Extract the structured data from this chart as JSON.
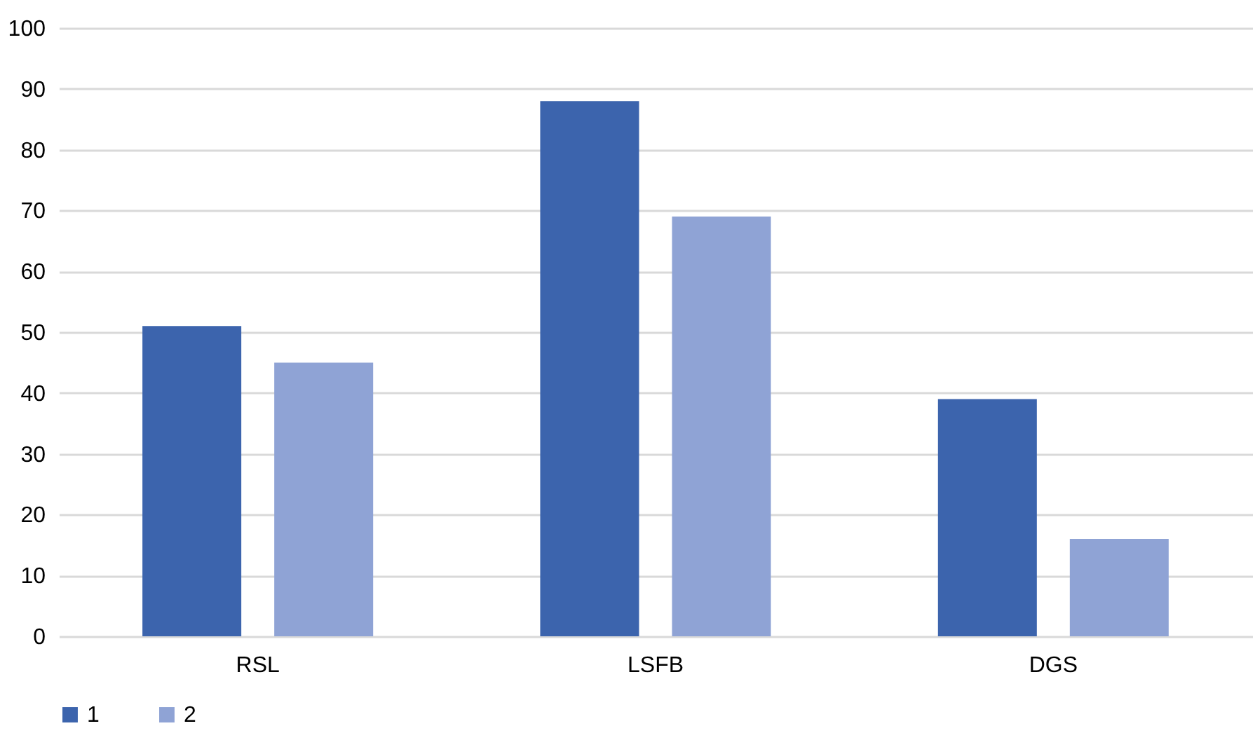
{
  "chart_data": {
    "type": "bar",
    "categories": [
      "RSL",
      "LSFB",
      "DGS"
    ],
    "series": [
      {
        "name": "1",
        "color": "#3c64ad",
        "values": [
          51,
          88,
          39
        ]
      },
      {
        "name": "2",
        "color": "#8fa3d5",
        "values": [
          45,
          69,
          16
        ]
      }
    ],
    "ylim": [
      0,
      100
    ],
    "yticks": [
      0,
      10,
      20,
      30,
      40,
      50,
      60,
      70,
      80,
      90,
      100
    ],
    "grid": "y",
    "legend": "bottom"
  }
}
